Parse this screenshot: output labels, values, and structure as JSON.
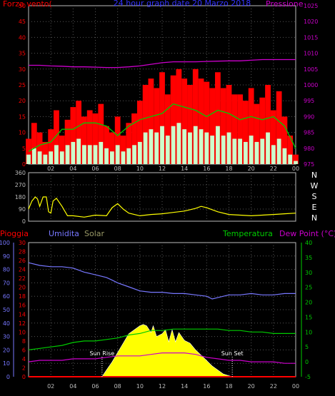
{
  "chart_data": [
    {
      "type": "line",
      "title": "24 hour graph date  20 Marzo 2018",
      "left_axis_label": "Forza vento(",
      "right_axis_label": "Pressione",
      "ylim_left": [
        0,
        50
      ],
      "left_ticks": [
        0,
        5,
        10,
        15,
        20,
        25,
        30,
        35,
        40,
        45,
        50
      ],
      "ylim_right": [
        975,
        1025
      ],
      "right_ticks": [
        975,
        980,
        985,
        990,
        995,
        1000,
        1005,
        1010,
        1015,
        1020,
        1025
      ],
      "x_ticks": [
        "02",
        "04",
        "06",
        "08",
        "10",
        "12",
        "14",
        "16",
        "18",
        "20",
        "22",
        "00"
      ],
      "colors": {
        "gust": "#ff0000",
        "average": "#ffffff",
        "dark": "#0000ff",
        "avg_line": "#00cc00",
        "pressure": "#cc00cc"
      },
      "series": [
        {
          "kind": "gust",
          "x": [
            0,
            0.5,
            1,
            1.5,
            2,
            2.5,
            3,
            3.5,
            4,
            4.5,
            5,
            5.5,
            6,
            6.5,
            7,
            7.5,
            8,
            8.5,
            9,
            9.5,
            10,
            10.5,
            11,
            11.5,
            12,
            12.5,
            13,
            13.5,
            14,
            14.5,
            15,
            15.5,
            16,
            16.5,
            17,
            17.5,
            18,
            18.5,
            19,
            19.5,
            20,
            20.5,
            21,
            21.5,
            22,
            22.5,
            23,
            23.5,
            24
          ],
          "y": [
            8,
            13,
            10,
            7,
            11,
            17,
            9,
            14,
            18,
            20,
            15,
            17,
            16,
            19,
            12,
            10,
            15,
            9,
            13,
            16,
            20,
            25,
            27,
            24,
            29,
            22,
            28,
            30,
            27,
            25,
            30,
            27,
            26,
            24,
            29,
            24,
            25,
            22,
            22,
            20,
            24,
            19,
            21,
            25,
            17,
            23,
            15,
            9,
            3
          ]
        },
        {
          "kind": "average",
          "x": [
            0,
            0.5,
            1,
            1.5,
            2,
            2.5,
            3,
            3.5,
            4,
            4.5,
            5,
            5.5,
            6,
            6.5,
            7,
            7.5,
            8,
            8.5,
            9,
            9.5,
            10,
            10.5,
            11,
            11.5,
            12,
            12.5,
            13,
            13.5,
            14,
            14.5,
            15,
            15.5,
            16,
            16.5,
            17,
            17.5,
            18,
            18.5,
            19,
            19.5,
            20,
            20.5,
            21,
            21.5,
            22,
            22.5,
            23,
            23.5,
            24
          ],
          "y": [
            3,
            5,
            4,
            3,
            4,
            6,
            4,
            6,
            7,
            8,
            6,
            6,
            6,
            7,
            5,
            4,
            6,
            4,
            5,
            6,
            7,
            10,
            11,
            10,
            12,
            9,
            12,
            13,
            11,
            10,
            12,
            11,
            10,
            9,
            12,
            9,
            10,
            8,
            8,
            7,
            9,
            7,
            8,
            10,
            6,
            8,
            5,
            3,
            1
          ]
        },
        {
          "kind": "avg_line",
          "x": [
            0,
            1,
            2,
            3,
            4,
            5,
            6,
            7,
            8,
            9,
            10,
            11,
            12,
            13,
            14,
            15,
            16,
            17,
            18,
            19,
            20,
            21,
            22,
            23,
            24
          ],
          "y": [
            4,
            6,
            7,
            11,
            11,
            13,
            13,
            12,
            9,
            12,
            14,
            15,
            16,
            19,
            18,
            17,
            15,
            17,
            16,
            14,
            15,
            14,
            15,
            12,
            5
          ]
        },
        {
          "kind": "pressure",
          "x": [
            0,
            1,
            2,
            3,
            4,
            5,
            6,
            7,
            8,
            9,
            10,
            11,
            12,
            13,
            14,
            15,
            16,
            17,
            18,
            19,
            20,
            21,
            22,
            23,
            24
          ],
          "y": [
            1006.2,
            1006.2,
            1006.0,
            1005.9,
            1005.7,
            1005.7,
            1005.6,
            1005.5,
            1005.5,
            1005.7,
            1006.0,
            1006.5,
            1007.0,
            1007.3,
            1007.3,
            1007.3,
            1007.4,
            1007.5,
            1007.6,
            1007.6,
            1007.8,
            1008.0,
            1008.0,
            1008.0,
            1008.0
          ]
        }
      ]
    },
    {
      "type": "line",
      "title": "",
      "ylim": [
        0,
        360
      ],
      "y_ticks": [
        0,
        90,
        180,
        270,
        360
      ],
      "compass_labels": [
        "N",
        "W",
        "S",
        "E",
        "N"
      ],
      "colors": {
        "direction": "#ffff00"
      },
      "series": [
        {
          "kind": "direction",
          "x": [
            0,
            0.3,
            0.6,
            0.8,
            1,
            1.3,
            1.6,
            1.8,
            2,
            2.2,
            2.5,
            3,
            3.5,
            4,
            5,
            6,
            7,
            7.5,
            8,
            8.5,
            9,
            10,
            11,
            12,
            13,
            14,
            15,
            15.5,
            16,
            17,
            18,
            19,
            20,
            21,
            22,
            23,
            24
          ],
          "y": [
            90,
            150,
            180,
            165,
            110,
            180,
            180,
            70,
            60,
            150,
            170,
            110,
            40,
            40,
            30,
            45,
            40,
            100,
            130,
            90,
            60,
            40,
            50,
            55,
            65,
            75,
            95,
            110,
            100,
            70,
            50,
            45,
            40,
            45,
            50,
            55,
            60
          ]
        }
      ]
    },
    {
      "type": "line",
      "title": "",
      "labels": {
        "rain": "Pioggia",
        "humidity": "Umidita",
        "solar": "Solar",
        "temperature": "Temperatura",
        "dewpoint": "Dew Point (°C)"
      },
      "ylim_humidity": [
        0,
        100
      ],
      "humidity_ticks": [
        0,
        10,
        20,
        30,
        40,
        50,
        60,
        70,
        80,
        90,
        100
      ],
      "ylim_rain": [
        0,
        30
      ],
      "rain_ticks": [
        0,
        2,
        4,
        6,
        8,
        10,
        12,
        14,
        16,
        18,
        20,
        22,
        24,
        26,
        28,
        30
      ],
      "ylim_temp": [
        -5,
        40
      ],
      "temp_ticks": [
        -5,
        0,
        5,
        10,
        15,
        20,
        25,
        30,
        35,
        40
      ],
      "x_ticks": [
        "02",
        "04",
        "06",
        "08",
        "10",
        "12",
        "14",
        "16",
        "18",
        "20",
        "22",
        "00"
      ],
      "annotations": [
        {
          "text": "Sun Rise",
          "x": 6.6
        },
        {
          "text": "Sun Set",
          "x": 18.3
        }
      ],
      "colors": {
        "humidity": "#7777ff",
        "temperature": "#00cc00",
        "dewpoint": "#cc00cc",
        "solar": "#ffff00",
        "rain": "#ff0000"
      },
      "series": [
        {
          "kind": "humidity",
          "x": [
            0,
            1,
            2,
            3,
            4,
            5,
            6,
            7,
            7.5,
            8,
            9,
            10,
            11,
            12,
            13,
            14,
            15,
            16,
            16.5,
            17,
            18,
            19,
            20,
            21,
            22,
            23,
            24
          ],
          "y": [
            85,
            83,
            82,
            82,
            81,
            78,
            76,
            74,
            72,
            70,
            67,
            64,
            63,
            63,
            62,
            62,
            61,
            60,
            58,
            59,
            61,
            61,
            62,
            61,
            61,
            62,
            62
          ]
        },
        {
          "kind": "temperature",
          "x": [
            0,
            1,
            2,
            3,
            4,
            5,
            6,
            7,
            8,
            9,
            10,
            11,
            12,
            13,
            14,
            15,
            16,
            17,
            18,
            19,
            20,
            21,
            22,
            23,
            24
          ],
          "y": [
            4,
            4.5,
            5,
            5.5,
            6.5,
            7,
            7,
            7.5,
            8,
            9,
            9.5,
            10.5,
            10.5,
            11,
            11,
            11,
            11,
            11,
            10.5,
            10.5,
            10,
            10,
            9.5,
            9.5,
            9.5
          ]
        },
        {
          "kind": "dewpoint",
          "x": [
            0,
            1,
            2,
            3,
            4,
            5,
            6,
            7,
            8,
            9,
            10,
            11,
            12,
            13,
            14,
            15,
            16,
            17,
            18,
            19,
            20,
            21,
            22,
            23,
            24
          ],
          "y": [
            0,
            0.5,
            0.5,
            0.5,
            1,
            1,
            1,
            1.5,
            2,
            2,
            2,
            2.5,
            3,
            3,
            3,
            2.5,
            1.5,
            1,
            0.5,
            0.5,
            0,
            0,
            0,
            -0.5,
            -0.5
          ]
        },
        {
          "kind": "solar",
          "x": [
            6.6,
            7,
            7.5,
            8,
            8.5,
            9,
            9.5,
            10,
            10.3,
            10.6,
            11,
            11.2,
            11.5,
            12,
            12.3,
            12.6,
            12.9,
            13.2,
            13.5,
            14,
            14.5,
            15,
            15.5,
            16,
            16.5,
            17,
            17.5,
            18.3
          ],
          "y": [
            0,
            5,
            11,
            18,
            25,
            32,
            35,
            38,
            39,
            38,
            33,
            38,
            30,
            32,
            35,
            26,
            35,
            26,
            33,
            27,
            25,
            20,
            16,
            12,
            8,
            5,
            2,
            0
          ]
        },
        {
          "kind": "rain",
          "x": [
            0,
            24
          ],
          "y": [
            0,
            0
          ]
        }
      ]
    }
  ]
}
